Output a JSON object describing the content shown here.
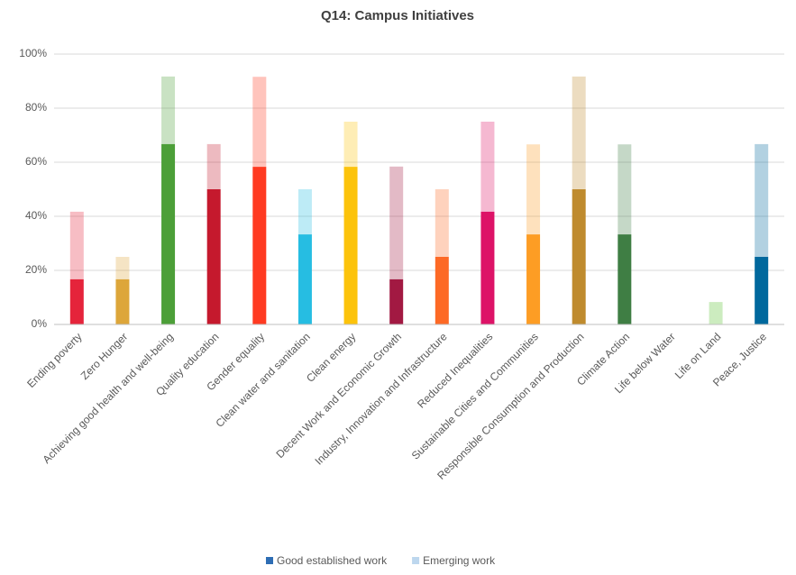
{
  "chart_data": {
    "type": "stacked_bar",
    "title": "Q14: Campus Initiatives",
    "categories": [
      "Ending poverty",
      "Zero Hunger",
      "Achieving good health and well-being",
      "Quality education",
      "Gender equality",
      "Clean water and sanitation",
      "Clean energy",
      "Decent Work and Economic Growth",
      "Industry, Innovation and Infrastructure",
      "Reduced Inequalities",
      "Sustainable Cities and Communities",
      "Responsible Consumption and Production",
      "Climate Action",
      "Life below Water",
      "Life on Land",
      "Peace, Justice"
    ],
    "colors": [
      "#e5243b",
      "#dda63a",
      "#4c9f38",
      "#c5192d",
      "#ff3a21",
      "#26bde2",
      "#fcc30b",
      "#a21942",
      "#fd6925",
      "#dd1367",
      "#fd9d24",
      "#bf8b2e",
      "#3f7e44",
      "#0a97d9",
      "#56c02b",
      "#00689d"
    ],
    "series": [
      {
        "name": "Good established work",
        "color": "#2e6db4",
        "values": [
          16.7,
          16.7,
          66.7,
          50,
          58.3,
          33.3,
          58.3,
          16.7,
          25,
          41.7,
          33.3,
          50,
          33.3,
          0,
          0,
          25
        ]
      },
      {
        "name": "Emerging work",
        "color": "#bdd7ee",
        "values": [
          25,
          8.3,
          25,
          16.7,
          33.3,
          16.7,
          16.7,
          41.7,
          25,
          33.3,
          33.3,
          41.7,
          33.3,
          0,
          8.3,
          41.7
        ]
      }
    ],
    "ylim": [
      0,
      100
    ],
    "yticks": [
      {
        "value": 0,
        "label": "0%"
      },
      {
        "value": 20,
        "label": "20%"
      },
      {
        "value": 40,
        "label": "40%"
      },
      {
        "value": 60,
        "label": "60%"
      },
      {
        "value": 80,
        "label": "80%"
      },
      {
        "value": 100,
        "label": "100%"
      }
    ],
    "grid": true,
    "legend": "bottom"
  }
}
